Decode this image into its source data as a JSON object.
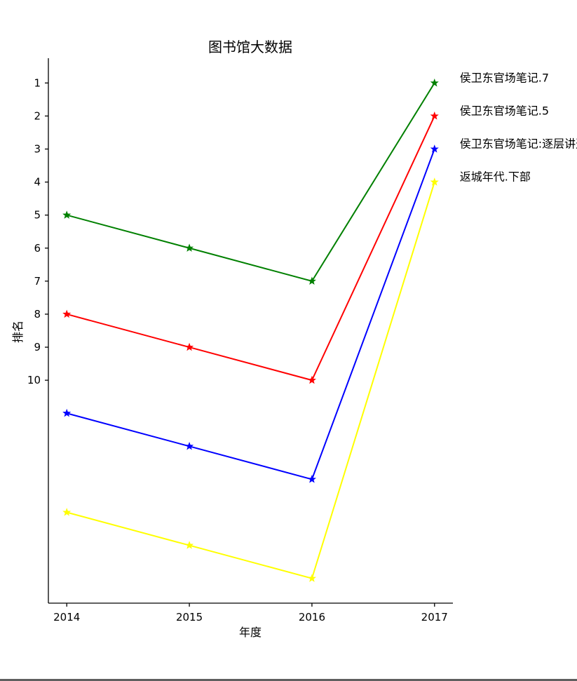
{
  "chart_data": {
    "type": "line",
    "title": "图书馆大数据",
    "xlabel": "年度",
    "ylabel": "排名",
    "x": [
      2014,
      2015,
      2016,
      2017
    ],
    "x_tick_labels": [
      "2014",
      "2015",
      "2016",
      "2017"
    ],
    "y_tick_values": [
      1,
      2,
      3,
      4,
      5,
      6,
      7,
      8,
      9,
      10
    ],
    "y_tick_labels": [
      "1",
      "2",
      "3",
      "4",
      "5",
      "6",
      "7",
      "8",
      "9",
      "10"
    ],
    "ylim": [
      0.25,
      16.75
    ],
    "y_inverted": true,
    "xlim": [
      2013.85,
      2017.15
    ],
    "grid": false,
    "marker": "star",
    "series": [
      {
        "name": "侯卫东官场笔记.7",
        "color": "#008000",
        "values": [
          5,
          6,
          7,
          1
        ]
      },
      {
        "name": "侯卫东官场笔记.5",
        "color": "#ff0000",
        "values": [
          8,
          9,
          10,
          2
        ]
      },
      {
        "name": "侯卫东官场笔记:逐层讲透",
        "color": "#0000ff",
        "values": [
          11,
          12,
          13,
          3
        ]
      },
      {
        "name": "返城年代.下部",
        "color": "#ffff00",
        "values": [
          14,
          15,
          16,
          4
        ]
      }
    ]
  }
}
